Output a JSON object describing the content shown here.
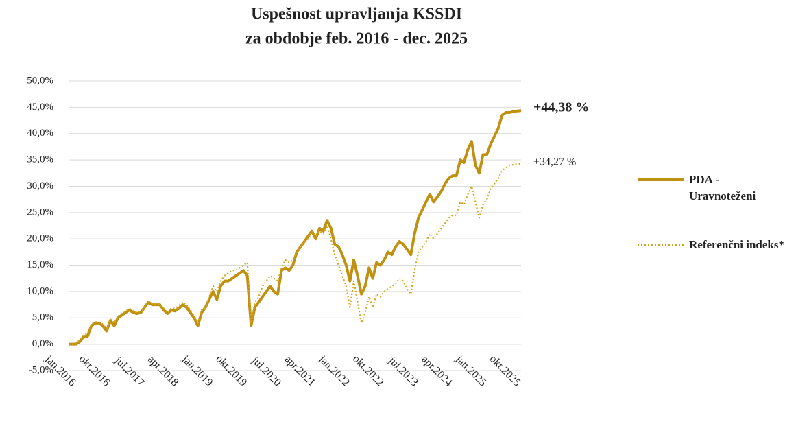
{
  "chart_data": {
    "type": "line",
    "title": "Uspešnost upravljanja KSSDI",
    "subtitle": "za obdobje feb. 2016 - dec. 2025",
    "categories": [
      "jan.2016",
      null,
      null,
      null,
      null,
      null,
      null,
      null,
      null,
      "okt.2016",
      null,
      null,
      null,
      null,
      null,
      null,
      null,
      null,
      "jul.2017",
      null,
      null,
      null,
      null,
      null,
      null,
      null,
      null,
      "apr.2018",
      null,
      null,
      null,
      null,
      null,
      null,
      null,
      null,
      "jan.2019",
      null,
      null,
      null,
      null,
      null,
      null,
      null,
      null,
      "okt.2019",
      null,
      null,
      null,
      null,
      null,
      null,
      null,
      null,
      "jul.2020",
      null,
      null,
      null,
      null,
      null,
      null,
      null,
      null,
      "apr.2021",
      null,
      null,
      null,
      null,
      null,
      null,
      null,
      null,
      "jan.2022",
      null,
      null,
      null,
      null,
      null,
      null,
      null,
      null,
      "okt.2022",
      null,
      null,
      null,
      null,
      null,
      null,
      null,
      null,
      "jul.2023",
      null,
      null,
      null,
      null,
      null,
      null,
      null,
      null,
      "apr.2024",
      null,
      null,
      null,
      null,
      null,
      null,
      null,
      null,
      "jan.2025",
      null,
      null,
      null,
      null,
      null,
      null,
      null,
      null,
      "okt.2025",
      null,
      null
    ],
    "series": [
      {
        "name": "PDA - Uravnoteženi",
        "color": "#c09010",
        "style": "solid",
        "values": [
          0,
          0,
          0,
          0.5,
          1.5,
          1.5,
          3.5,
          4,
          4,
          3.5,
          2.5,
          4.5,
          3.5,
          5,
          5.5,
          6,
          6.5,
          6,
          5.8,
          6,
          7,
          8,
          7.5,
          7.5,
          7.5,
          6.5,
          5.8,
          6.5,
          6.3,
          6.8,
          7.5,
          7,
          6,
          5,
          3.5,
          6,
          7,
          8.5,
          10,
          8.5,
          11,
          12,
          12,
          12.5,
          13,
          13.5,
          14,
          13,
          3.5,
          7,
          8,
          9,
          10,
          11,
          10,
          9.5,
          14,
          14.5,
          14,
          15,
          17.5,
          18.5,
          19.5,
          20.5,
          21.5,
          20,
          22,
          21.5,
          23.5,
          22,
          19,
          18.5,
          17,
          15,
          12,
          16,
          13,
          9.5,
          11,
          14.5,
          12.5,
          15.5,
          15,
          16,
          17.5,
          17,
          18.5,
          19.5,
          19,
          18,
          17,
          21,
          24,
          25.5,
          27,
          28.5,
          27,
          28,
          29,
          30.5,
          31.5,
          32,
          32,
          35,
          34.5,
          37,
          38.5,
          34,
          32.5,
          36,
          36,
          38,
          39.5,
          41,
          43.5,
          44,
          44,
          44.2,
          44.3,
          44.38
        ]
      },
      {
        "name": "Referenčni indeks*",
        "color": "#d4a520",
        "style": "dotted",
        "values": [
          0,
          0,
          0.3,
          0.8,
          1.8,
          2,
          3.8,
          4.2,
          4.2,
          3.8,
          3,
          4.8,
          4,
          5.3,
          5.8,
          6.3,
          6.8,
          6.3,
          6,
          6.3,
          7.2,
          8,
          7.7,
          7.6,
          7.6,
          6.8,
          6,
          6.8,
          6.8,
          7.3,
          8,
          7.5,
          6.5,
          5.5,
          4,
          6.5,
          7,
          9,
          11,
          10,
          12,
          13,
          13.5,
          14,
          14,
          14.5,
          15,
          15.5,
          4,
          8,
          9,
          11,
          12,
          13,
          12.5,
          12,
          14.5,
          16,
          15.5,
          16,
          17.5,
          18.5,
          19.5,
          20,
          21.5,
          20.5,
          21.5,
          21,
          22.5,
          20,
          17,
          15,
          13,
          11,
          7,
          12,
          8,
          4,
          6,
          9,
          7,
          9.5,
          9,
          10,
          10.5,
          11,
          11.5,
          12.5,
          12,
          10.5,
          9.5,
          14,
          17.5,
          18.5,
          19.5,
          21,
          20,
          21,
          22,
          23,
          24,
          24.5,
          24.5,
          27,
          26.5,
          28.5,
          30,
          27,
          24,
          26.5,
          27.5,
          29.5,
          30.5,
          31.5,
          33,
          33.5,
          34,
          34.1,
          34.2,
          34.27
        ]
      }
    ],
    "annotations": [
      "+44,38 %",
      "+34,27 %"
    ],
    "ylim": [
      -5,
      50
    ],
    "yticks": [
      {
        "value": -5,
        "label": "-5,0%"
      },
      {
        "value": 0,
        "label": "0,0%"
      },
      {
        "value": 5,
        "label": "5,0%"
      },
      {
        "value": 10,
        "label": "10,0%"
      },
      {
        "value": 15,
        "label": "15,0%"
      },
      {
        "value": 20,
        "label": "20,0%"
      },
      {
        "value": 25,
        "label": "25,0%"
      },
      {
        "value": 30,
        "label": "30,0%"
      },
      {
        "value": 35,
        "label": "35,0%"
      },
      {
        "value": 40,
        "label": "40,0%"
      },
      {
        "value": 45,
        "label": "45,0%"
      },
      {
        "value": 50,
        "label": "50,0%"
      }
    ],
    "grid": true
  }
}
